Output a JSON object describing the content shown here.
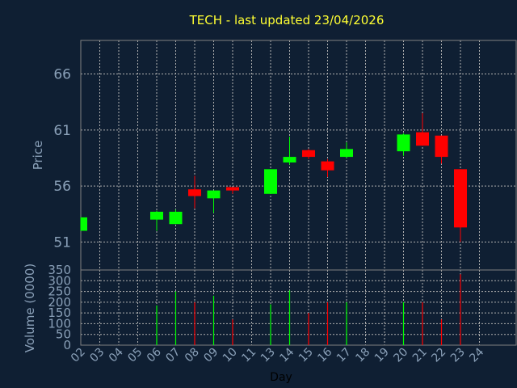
{
  "title": "TECH - last updated 23/04/2026",
  "colors": {
    "background": "#0f1f33",
    "frame": "#808080",
    "grid": "#b0b0b0",
    "up": "#00ff00",
    "down": "#ff0000",
    "title": "#ffff33",
    "labels": "#8aa0b8"
  },
  "chart_data": [
    {
      "type": "candlestick",
      "ylabel": "Price",
      "ylim": [
        48.5,
        69
      ],
      "yticks": [
        51,
        56,
        61,
        66
      ],
      "x_ticks": [
        "02",
        "03",
        "04",
        "05",
        "06",
        "07",
        "08",
        "09",
        "10",
        "11",
        "13",
        "14",
        "15",
        "16",
        "17",
        "18",
        "19",
        "20",
        "21",
        "22",
        "23",
        "24"
      ],
      "grid": true,
      "candles": [
        {
          "day": "02",
          "open": 52.0,
          "close": 53.2,
          "high": 53.2,
          "low": 52.0
        },
        {
          "day": "06",
          "open": 53.0,
          "close": 53.7,
          "high": 53.8,
          "low": 52.0
        },
        {
          "day": "07",
          "open": 52.6,
          "close": 53.7,
          "high": 53.9,
          "low": 52.6
        },
        {
          "day": "08",
          "open": 55.7,
          "close": 55.1,
          "high": 56.9,
          "low": 54.0
        },
        {
          "day": "09",
          "open": 54.9,
          "close": 55.6,
          "high": 55.6,
          "low": 53.6
        },
        {
          "day": "10",
          "open": 55.9,
          "close": 55.6,
          "high": 55.9,
          "low": 55.3
        },
        {
          "day": "13",
          "open": 55.3,
          "close": 57.5,
          "high": 57.5,
          "low": 55.3
        },
        {
          "day": "14",
          "open": 58.1,
          "close": 58.6,
          "high": 60.4,
          "low": 57.9
        },
        {
          "day": "15",
          "open": 59.2,
          "close": 58.6,
          "high": 59.3,
          "low": 58.4
        },
        {
          "day": "16",
          "open": 58.2,
          "close": 57.4,
          "high": 58.4,
          "low": 56.8
        },
        {
          "day": "17",
          "open": 58.6,
          "close": 59.3,
          "high": 59.9,
          "low": 58.5
        },
        {
          "day": "20",
          "open": 59.1,
          "close": 60.6,
          "high": 60.7,
          "low": 58.7
        },
        {
          "day": "21",
          "open": 60.8,
          "close": 59.6,
          "high": 62.5,
          "low": 59.6
        },
        {
          "day": "22",
          "open": 60.5,
          "close": 58.6,
          "high": 60.5,
          "low": 58.0
        },
        {
          "day": "23",
          "open": 57.5,
          "close": 52.3,
          "high": 57.5,
          "low": 51.0
        }
      ]
    },
    {
      "type": "bar",
      "ylabel": "Volume (0000)",
      "xlabel": "Day",
      "ylim": [
        0,
        350
      ],
      "yticks": [
        0,
        50,
        100,
        150,
        200,
        250,
        300,
        350
      ],
      "grid": true,
      "bars": [
        {
          "day": "06",
          "value": 185,
          "direction": "up"
        },
        {
          "day": "07",
          "value": 250,
          "direction": "up"
        },
        {
          "day": "08",
          "value": 200,
          "direction": "down"
        },
        {
          "day": "09",
          "value": 230,
          "direction": "up"
        },
        {
          "day": "10",
          "value": 120,
          "direction": "down"
        },
        {
          "day": "13",
          "value": 190,
          "direction": "up"
        },
        {
          "day": "14",
          "value": 255,
          "direction": "up"
        },
        {
          "day": "15",
          "value": 150,
          "direction": "down"
        },
        {
          "day": "16",
          "value": 200,
          "direction": "down"
        },
        {
          "day": "17",
          "value": 200,
          "direction": "up"
        },
        {
          "day": "20",
          "value": 200,
          "direction": "up"
        },
        {
          "day": "21",
          "value": 200,
          "direction": "down"
        },
        {
          "day": "22",
          "value": 120,
          "direction": "down"
        },
        {
          "day": "23",
          "value": 330,
          "direction": "down"
        }
      ]
    }
  ]
}
